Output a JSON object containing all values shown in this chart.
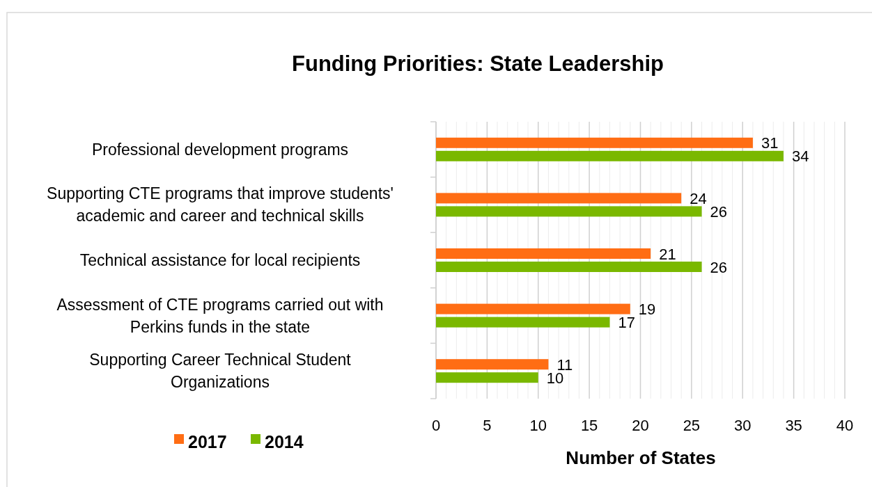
{
  "chart_data": {
    "type": "bar",
    "orientation": "horizontal",
    "title": "Funding Priorities: State Leadership",
    "xlabel": "Number of States",
    "categories": [
      "Professional development programs",
      "Supporting CTE programs that improve students' academic and career and technical skills",
      "Technical assistance for local recipients",
      "Assessment of CTE programs carried out with Perkins funds in the state",
      "Supporting Career Technical Student Organizations"
    ],
    "series": [
      {
        "name": "2017",
        "color": "#ff6d14",
        "values": [
          31,
          24,
          21,
          19,
          11
        ]
      },
      {
        "name": "2014",
        "color": "#7ab800",
        "values": [
          34,
          26,
          26,
          17,
          10
        ]
      }
    ],
    "xlim": [
      0,
      40
    ],
    "xticks": [
      0,
      {
        "value": 1,
        "label": null
      },
      {
        "value": 2,
        "label": null
      },
      {
        "value": 3,
        "label": null
      },
      {
        "value": 4,
        "label": null
      },
      5,
      {
        "value": 6,
        "label": null
      },
      {
        "value": 7,
        "label": null
      },
      {
        "value": 8,
        "label": null
      },
      {
        "value": 9,
        "label": null
      },
      10,
      {
        "value": 11,
        "label": null
      },
      {
        "value": 12,
        "label": null
      },
      {
        "value": 13,
        "label": null
      },
      {
        "value": 14,
        "label": null
      },
      15,
      {
        "value": 16,
        "label": null
      },
      {
        "value": 17,
        "label": null
      },
      {
        "value": 18,
        "label": null
      },
      {
        "value": 19,
        "label": null
      },
      20,
      {
        "value": 21,
        "label": null
      },
      {
        "value": 22,
        "label": null
      },
      {
        "value": 23,
        "label": null
      },
      {
        "value": 24,
        "label": null
      },
      25,
      {
        "value": 26,
        "label": null
      },
      {
        "value": 27,
        "label": null
      },
      {
        "value": 28,
        "label": null
      },
      {
        "value": 29,
        "label": null
      },
      30,
      {
        "value": 31,
        "label": null
      },
      {
        "value": 32,
        "label": null
      },
      {
        "value": 33,
        "label": null
      },
      {
        "value": 34,
        "label": null
      },
      35,
      {
        "value": 36,
        "label": null
      },
      {
        "value": 37,
        "label": null
      },
      {
        "value": 38,
        "label": null
      },
      {
        "value": 39,
        "label": null
      },
      40
    ],
    "grid": "x",
    "legend": "bottom left",
    "data_labels": true
  }
}
